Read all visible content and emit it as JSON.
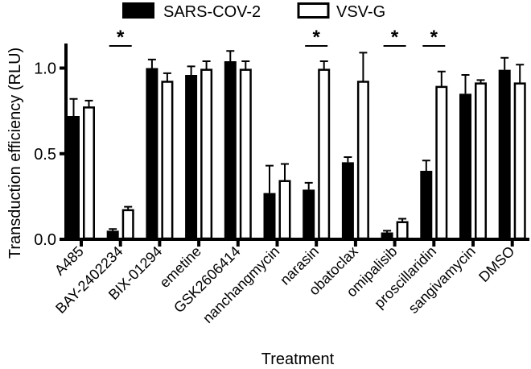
{
  "chart_data": {
    "type": "bar",
    "title": "",
    "xlabel": "Treatment",
    "ylabel": "Transduction efficiency (RLU)",
    "ylim": [
      0,
      1.15
    ],
    "yticks": [
      "0.0",
      "0.5",
      "1.0"
    ],
    "ytick_values": [
      0,
      0.5,
      1.0
    ],
    "legend_position": "top",
    "categories": [
      "A485",
      "BAY-2402234",
      "BIX-01294",
      "emetine",
      "GSK2606414",
      "nanchangmycin",
      "narasin",
      "obatoclax",
      "omipalisib",
      "proscillaridin",
      "sangivamycin",
      "DMSO"
    ],
    "series": [
      {
        "name": "SARS-COV-2",
        "color": "#000000",
        "fill": "solid",
        "values": [
          0.72,
          0.05,
          1.0,
          0.96,
          1.04,
          0.27,
          0.29,
          0.45,
          0.04,
          0.4,
          0.85,
          0.99
        ],
        "errors": [
          0.1,
          0.01,
          0.05,
          0.05,
          0.06,
          0.16,
          0.04,
          0.03,
          0.01,
          0.06,
          0.11,
          0.07
        ]
      },
      {
        "name": "VSV-G",
        "color": "#000000",
        "fill": "open",
        "values": [
          0.77,
          0.17,
          0.92,
          0.99,
          0.99,
          0.34,
          0.99,
          0.92,
          0.1,
          0.89,
          0.91,
          0.91
        ],
        "errors": [
          0.04,
          0.02,
          0.05,
          0.05,
          0.05,
          0.1,
          0.05,
          0.17,
          0.02,
          0.09,
          0.02,
          0.11
        ]
      }
    ],
    "significance": [
      {
        "category": "BAY-2402234",
        "label": "*"
      },
      {
        "category": "narasin",
        "label": "*"
      },
      {
        "category": "omipalisib",
        "label": "*"
      },
      {
        "category": "proscillaridin",
        "label": "*"
      }
    ]
  }
}
